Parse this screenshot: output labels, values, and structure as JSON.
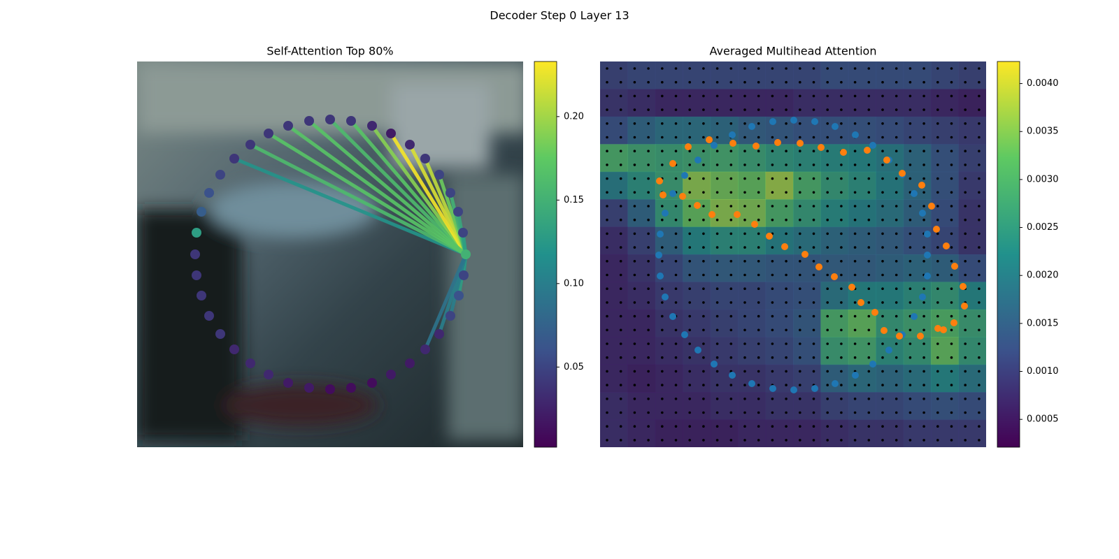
{
  "title": "Decoder Step 0 Layer 13",
  "chart_data": [
    {
      "type": "attention",
      "title": "Self-Attention Top 80%",
      "xlim": [
        0,
        552
      ],
      "ylim": [
        552,
        0
      ],
      "x": [
        276,
        306,
        336,
        363,
        390,
        412,
        432,
        448,
        459,
        466,
        470,
        467,
        460,
        448,
        432,
        412,
        390,
        363,
        336,
        306,
        276,
        246,
        216,
        188,
        162,
        139,
        119,
        103,
        92,
        85,
        83,
        85,
        92,
        103,
        119,
        139,
        162,
        188,
        216,
        246
      ],
      "y": [
        83,
        85,
        92,
        103,
        119,
        139,
        162,
        188,
        215,
        245,
        276,
        306,
        335,
        364,
        390,
        412,
        432,
        448,
        460,
        467,
        469,
        467,
        460,
        448,
        432,
        412,
        390,
        364,
        335,
        306,
        276,
        245,
        215,
        188,
        162,
        139,
        119,
        103,
        92,
        85
      ],
      "values": [
        0.04,
        0.04,
        0.03,
        0.02,
        0.03,
        0.04,
        0.05,
        0.05,
        0.05,
        0.05,
        0.15,
        0.05,
        0.06,
        0.05,
        0.03,
        0.03,
        0.02,
        0.02,
        0.01,
        0.01,
        0.01,
        0.02,
        0.02,
        0.03,
        0.03,
        0.03,
        0.04,
        0.04,
        0.04,
        0.04,
        0.04,
        0.13,
        0.07,
        0.06,
        0.05,
        0.04,
        0.04,
        0.04,
        0.04,
        0.04
      ],
      "query_index": 10,
      "line_weights": [
        0.16,
        0.17,
        0.19,
        0.23,
        0.22,
        0.21,
        0.18,
        0.15,
        0.14,
        0.13,
        null,
        0.12,
        0.13,
        0.1,
        0.1,
        0.09,
        null,
        null,
        null,
        null,
        null,
        null,
        null,
        null,
        null,
        null,
        null,
        null,
        null,
        null,
        null,
        null,
        null,
        null,
        null,
        0.12,
        0.16,
        0.17,
        0.17,
        0.17
      ],
      "colorbar": {
        "lim": [
          0.002,
          0.233
        ],
        "ticks": [
          0.05,
          {
            "value": 0.1,
            "label": "0.10"
          },
          0.15,
          {
            "value": 0.2,
            "label": "0.20"
          }
        ]
      }
    },
    {
      "type": "heatmap",
      "title": "Averaged Multihead Attention",
      "xlim": [
        0,
        552
      ],
      "ylim": [
        552,
        0
      ],
      "heatmap": [
        [
          0.001,
          0.0011,
          0.0011,
          0.0011,
          0.0011,
          0.0011,
          0.0011,
          0.0011,
          0.0012,
          0.0012,
          0.0012,
          0.0012,
          0.0011,
          0.001
        ],
        [
          0.0008,
          0.0007,
          0.0006,
          0.0006,
          0.0006,
          0.0006,
          0.0006,
          0.0007,
          0.0007,
          0.0007,
          0.0007,
          0.0007,
          0.0006,
          0.0005
        ],
        [
          0.0012,
          0.0016,
          0.0018,
          0.0018,
          0.0017,
          0.0015,
          0.0014,
          0.0013,
          0.0013,
          0.0013,
          0.0012,
          0.0011,
          0.001,
          0.0009
        ],
        [
          0.003,
          0.0028,
          0.0027,
          0.0028,
          0.0029,
          0.0027,
          0.0025,
          0.0024,
          0.0023,
          0.0022,
          0.002,
          0.0017,
          0.0013,
          0.001
        ],
        [
          0.002,
          0.0024,
          0.0027,
          0.0036,
          0.0034,
          0.0033,
          0.0037,
          0.003,
          0.0026,
          0.0024,
          0.0021,
          0.0017,
          0.0013,
          0.0009
        ],
        [
          0.001,
          0.0016,
          0.0026,
          0.0033,
          0.0036,
          0.0035,
          0.003,
          0.0026,
          0.0023,
          0.0021,
          0.0019,
          0.0016,
          0.0012,
          0.0008
        ],
        [
          0.0007,
          0.001,
          0.0016,
          0.0022,
          0.0024,
          0.0024,
          0.0021,
          0.0019,
          0.0017,
          0.0016,
          0.0015,
          0.0013,
          0.0011,
          0.0008
        ],
        [
          0.0006,
          0.0008,
          0.0011,
          0.0014,
          0.0015,
          0.0015,
          0.0014,
          0.0014,
          0.0015,
          0.0015,
          0.0016,
          0.0017,
          0.0016,
          0.0012
        ],
        [
          0.0006,
          0.0007,
          0.0009,
          0.001,
          0.0011,
          0.0011,
          0.0012,
          0.0013,
          0.0019,
          0.0022,
          0.0022,
          0.0024,
          0.0026,
          0.0022
        ],
        [
          0.0006,
          0.0006,
          0.0008,
          0.0009,
          0.001,
          0.0011,
          0.0012,
          0.0014,
          0.003,
          0.0033,
          0.0026,
          0.0028,
          0.0031,
          0.0027
        ],
        [
          0.0006,
          0.0006,
          0.0007,
          0.0008,
          0.0009,
          0.001,
          0.0011,
          0.0013,
          0.0027,
          0.0029,
          0.0024,
          0.0026,
          0.0033,
          0.0026
        ],
        [
          0.0006,
          0.0005,
          0.0006,
          0.0007,
          0.0008,
          0.0008,
          0.0009,
          0.001,
          0.0016,
          0.0018,
          0.0017,
          0.0019,
          0.0022,
          0.0019
        ],
        [
          0.0007,
          0.0006,
          0.0006,
          0.0006,
          0.0007,
          0.0007,
          0.0008,
          0.0008,
          0.001,
          0.0011,
          0.0011,
          0.0012,
          0.0013,
          0.0012
        ],
        [
          0.0007,
          0.0006,
          0.0005,
          0.0005,
          0.0005,
          0.0006,
          0.0006,
          0.0006,
          0.0007,
          0.0008,
          0.0008,
          0.0009,
          0.0009,
          0.0009
        ]
      ],
      "series": [
        {
          "color": "#1f77b4",
          "x": [
            217,
            247,
            277,
            307,
            336,
            365,
            390,
            413,
            432,
            449,
            461,
            468,
            468,
            468,
            461,
            449,
            432,
            413,
            390,
            365,
            336,
            307,
            277,
            247,
            217,
            189,
            163,
            140,
            121,
            104,
            93,
            86,
            84,
            86,
            93,
            104,
            121,
            140,
            163,
            189
          ],
          "y": [
            93,
            86,
            84,
            86,
            93,
            105,
            120,
            141,
            162,
            189,
            217,
            247,
            277,
            307,
            337,
            365,
            391,
            413,
            433,
            449,
            461,
            468,
            470,
            468,
            461,
            449,
            433,
            413,
            391,
            365,
            337,
            307,
            277,
            247,
            217,
            189,
            163,
            141,
            120,
            105
          ]
        },
        {
          "color": "#ff7f0e",
          "x": [
            85,
            90,
            104,
            118,
            126,
            139,
            156,
            160,
            190,
            196,
            223,
            221,
            242,
            254,
            264,
            286,
            293,
            316,
            313,
            335,
            348,
            360,
            373,
            382,
            393,
            406,
            410,
            428,
            432,
            458,
            460,
            474,
            483,
            481,
            491,
            495,
            507,
            506,
            519,
            521
          ],
          "y": [
            171,
            191,
            146,
            193,
            122,
            206,
            112,
            219,
            117,
            219,
            121,
            233,
            250,
            116,
            265,
            117,
            276,
            123,
            294,
            308,
            130,
            323,
            345,
            127,
            359,
            385,
            141,
            393,
            160,
            393,
            177,
            207,
            382,
            240,
            384,
            264,
            293,
            374,
            322,
            350
          ]
        }
      ],
      "colorbar": {
        "lim": [
          0.00021,
          0.00423
        ],
        "ticks": [
          0.0005,
          {
            "value": 0.001,
            "label": "0.0010"
          },
          0.0015,
          {
            "value": 0.002,
            "label": "0.0020"
          },
          0.0025,
          {
            "value": 0.003,
            "label": "0.0030"
          },
          0.0035,
          {
            "value": 0.004,
            "label": "0.0040"
          }
        ]
      }
    }
  ]
}
